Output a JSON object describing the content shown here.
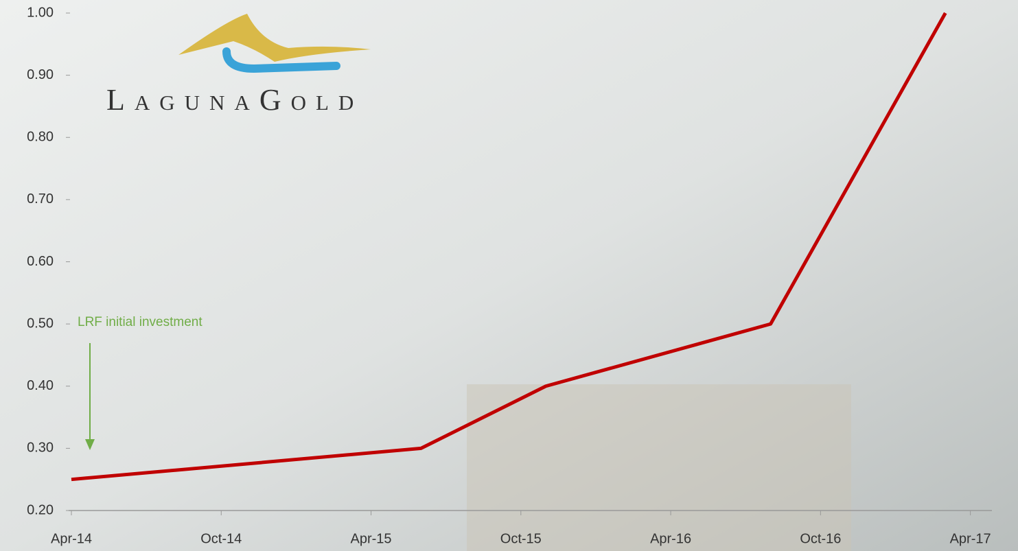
{
  "chart_data": {
    "type": "line",
    "logo": "LagunaGold",
    "annotation": "LRF initial investment",
    "x": [
      "Apr-14",
      "Jun-15",
      "Nov-15",
      "Aug-16",
      "Mar-17"
    ],
    "values": [
      0.25,
      0.3,
      0.4,
      0.5,
      1.0
    ],
    "color": "#c00000",
    "xlim": [
      "Apr-14",
      "May-17"
    ],
    "xticks": [
      "Apr-14",
      "Oct-14",
      "Apr-15",
      "Oct-15",
      "Apr-16",
      "Oct-16",
      "Apr-17"
    ],
    "ylim": [
      0.2,
      1.0
    ],
    "yticks": [
      {
        "value": 0.2,
        "label": "0.20"
      },
      {
        "value": 0.3,
        "label": "0.30"
      },
      {
        "value": 0.4,
        "label": "0.40"
      },
      {
        "value": 0.5,
        "label": "0.50"
      },
      {
        "value": 0.6,
        "label": "0.60"
      },
      {
        "value": 0.7,
        "label": "0.70"
      },
      {
        "value": 0.8,
        "label": "0.80"
      },
      {
        "value": 0.9,
        "label": "0.90"
      },
      {
        "value": 1.0,
        "label": "1.00"
      }
    ]
  }
}
